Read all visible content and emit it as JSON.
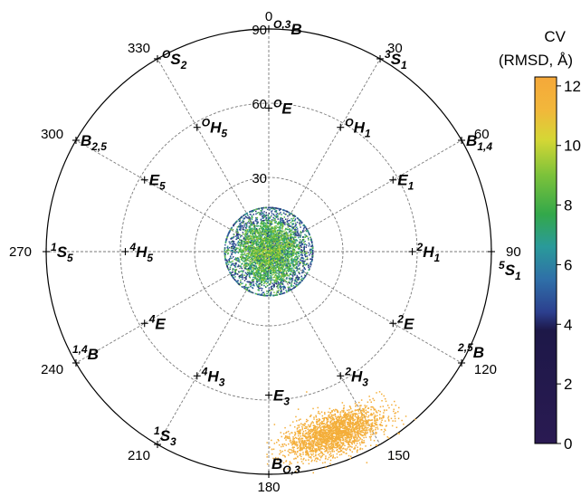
{
  "chart_data": {
    "type": "scatter",
    "projection": "polar (Cremer-Pople phi / theta)",
    "angular_ticks": [
      "0",
      "30",
      "60",
      "90",
      "120",
      "150",
      "180",
      "210",
      "240",
      "270",
      "300",
      "330"
    ],
    "radial_ticks": [
      "30",
      "60",
      "90"
    ],
    "colorbar": {
      "title": "CV",
      "subtitle": "(RMSD, Å)",
      "ticks": [
        "0",
        "2",
        "4",
        "6",
        "8",
        "10",
        "12"
      ],
      "range": [
        0,
        12.3
      ],
      "stops": [
        {
          "v": 0,
          "c": "#2a1a52"
        },
        {
          "v": 3.8,
          "c": "#1d1848"
        },
        {
          "v": 4.4,
          "c": "#2c3f8e"
        },
        {
          "v": 5.5,
          "c": "#2f6fa8"
        },
        {
          "v": 6.6,
          "c": "#2a9a9a"
        },
        {
          "v": 7.7,
          "c": "#33a84a"
        },
        {
          "v": 9.0,
          "c": "#7cc23a"
        },
        {
          "v": 10.2,
          "c": "#d5d735"
        },
        {
          "v": 11.2,
          "c": "#f2b73b"
        },
        {
          "v": 12.3,
          "c": "#f5a83a"
        }
      ]
    },
    "conformations": [
      {
        "sup": "O,3",
        "main": "B",
        "sub": "",
        "phi": 0,
        "theta": 90
      },
      {
        "sup": "3",
        "main": "S",
        "sub": "1",
        "phi": 30,
        "theta": 90
      },
      {
        "sup": "",
        "main": "B",
        "sub": "1,4",
        "phi": 60,
        "theta": 90
      },
      {
        "sup": "5",
        "main": "S",
        "sub": "1",
        "phi": 90,
        "theta": 90
      },
      {
        "sup": "2,5",
        "main": "B",
        "sub": "",
        "phi": 120,
        "theta": 90
      },
      {
        "sup": "",
        "main": "B",
        "sub": "O,3",
        "phi": 180,
        "theta": 90
      },
      {
        "sup": "1",
        "main": "S",
        "sub": "3",
        "phi": 210,
        "theta": 90
      },
      {
        "sup": "1,4",
        "main": "B",
        "sub": "",
        "phi": 240,
        "theta": 90
      },
      {
        "sup": "1",
        "main": "S",
        "sub": "5",
        "phi": 270,
        "theta": 90
      },
      {
        "sup": "",
        "main": "B",
        "sub": "2,5",
        "phi": 300,
        "theta": 90
      },
      {
        "sup": "O",
        "main": "S",
        "sub": "2",
        "phi": 330,
        "theta": 90
      },
      {
        "sup": "O",
        "main": "E",
        "sub": "",
        "phi": 0,
        "theta": 58
      },
      {
        "sup": "O",
        "main": "H",
        "sub": "1",
        "phi": 30,
        "theta": 58
      },
      {
        "sup": "",
        "main": "E",
        "sub": "1",
        "phi": 60,
        "theta": 58
      },
      {
        "sup": "2",
        "main": "H",
        "sub": "1",
        "phi": 90,
        "theta": 58
      },
      {
        "sup": "2",
        "main": "E",
        "sub": "",
        "phi": 120,
        "theta": 58
      },
      {
        "sup": "2",
        "main": "H",
        "sub": "3",
        "phi": 150,
        "theta": 58
      },
      {
        "sup": "",
        "main": "E",
        "sub": "3",
        "phi": 180,
        "theta": 58
      },
      {
        "sup": "4",
        "main": "H",
        "sub": "3",
        "phi": 210,
        "theta": 58
      },
      {
        "sup": "4",
        "main": "E",
        "sub": "",
        "phi": 240,
        "theta": 58
      },
      {
        "sup": "4",
        "main": "H",
        "sub": "5",
        "phi": 270,
        "theta": 58
      },
      {
        "sup": "",
        "main": "E",
        "sub": "5",
        "phi": 300,
        "theta": 58
      },
      {
        "sup": "O",
        "main": "H",
        "sub": "5",
        "phi": 330,
        "theta": 58
      }
    ],
    "clusters": [
      {
        "center_phi": 0,
        "center_theta": 0,
        "spread_theta": 11.5,
        "cv_range": [
          4,
          11
        ],
        "n_points": 4200
      },
      {
        "center_phi": 160,
        "center_theta": 90,
        "spread_phi": 10,
        "cv_range": [
          11.5,
          12.2
        ],
        "n_points": 2200
      }
    ],
    "grid": true
  }
}
